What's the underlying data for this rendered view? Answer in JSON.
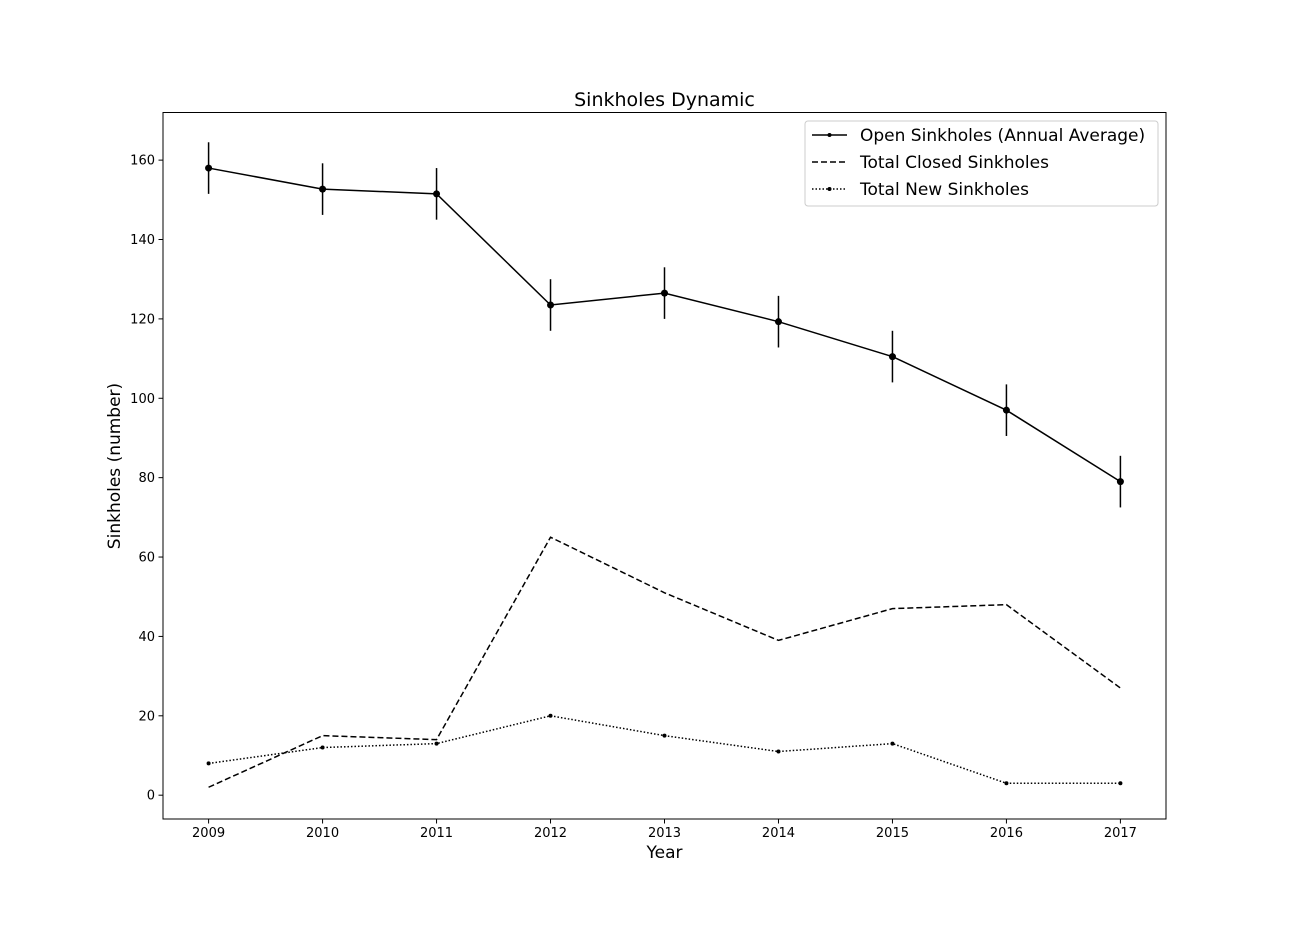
{
  "chart_data": {
    "type": "line",
    "title": "Sinkholes Dynamic",
    "xlabel": "Year",
    "ylabel": "Sinkholes (number)",
    "x": [
      2009,
      2010,
      2011,
      2012,
      2013,
      2014,
      2015,
      2016,
      2017
    ],
    "xlim": [
      2008.6,
      2017.4
    ],
    "ylim": [
      -6,
      172
    ],
    "xticks": [
      "2009",
      "2010",
      "2011",
      "2012",
      "2013",
      "2014",
      "2015",
      "2016",
      "2017"
    ],
    "yticks": [
      "0",
      "20",
      "40",
      "60",
      "80",
      "100",
      "120",
      "140",
      "160"
    ],
    "grid": false,
    "legend_position": "top-right",
    "series": [
      {
        "name": "Open Sinkholes (Annual Average)",
        "style": "solid",
        "marker": "circle",
        "color": "#000000",
        "values": [
          158,
          152.7,
          151.5,
          123.5,
          126.5,
          119.3,
          110.5,
          97,
          79
        ],
        "error": [
          6.5,
          6.5,
          6.5,
          6.5,
          6.5,
          6.5,
          6.5,
          6.5,
          6.5
        ]
      },
      {
        "name": "Total Closed Sinkholes",
        "style": "dashed",
        "marker": "none",
        "color": "#000000",
        "values": [
          2,
          15,
          14,
          65,
          51,
          39,
          47,
          48,
          27
        ]
      },
      {
        "name": "Total New Sinkholes",
        "style": "dotted",
        "marker": "small-circle",
        "color": "#000000",
        "values": [
          8,
          12,
          13,
          20,
          15,
          11,
          13,
          3,
          3
        ]
      }
    ]
  }
}
